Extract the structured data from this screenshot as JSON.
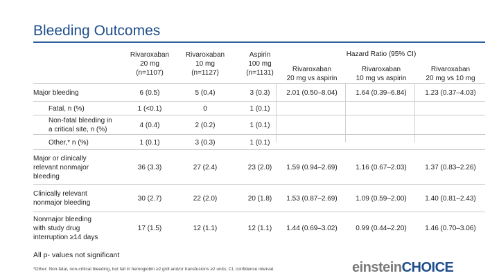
{
  "title": "Bleeding Outcomes",
  "columns": {
    "riva20": "Rivaroxaban\n20 mg\n(n=1107)",
    "riva10": "Rivaroxaban\n10 mg\n(n=1127)",
    "aspirin": "Aspirin\n100 mg\n(n=1131)",
    "hr_group": "Hazard Ratio (95% CI)",
    "hr1": "Rivaroxaban\n20 mg vs aspirin",
    "hr2": "Rivaroxaban\n10 mg vs aspirin",
    "hr3": "Rivaroxaban\n20 mg vs 10 mg"
  },
  "rows": [
    {
      "label": "Major bleeding",
      "v": [
        "6 (0.5)",
        "5 (0.4)",
        "3 (0.3)",
        "2.01 (0.50–8.04)",
        "1.64 (0.39–6.84)",
        "1.23 (0.37–4.03)"
      ]
    },
    {
      "label": "Fatal, n (%)",
      "v": [
        "1 (<0.1)",
        "0",
        "1 (0.1)",
        "",
        "",
        ""
      ]
    },
    {
      "label": "Non-fatal bleeding in\na critical site, n (%)",
      "v": [
        "4 (0.4)",
        "2 (0.2)",
        "1 (0.1)",
        "",
        "",
        ""
      ]
    },
    {
      "label": "Other,* n (%)",
      "v": [
        "1 (0.1)",
        "3 (0.3)",
        "1 (0.1)",
        "",
        "",
        ""
      ]
    },
    {
      "label": "Major or clinically\nrelevant nonmajor\nbleeding",
      "v": [
        "36 (3.3)",
        "27 (2.4)",
        "23 (2.0)",
        "1.59 (0.94–2.69)",
        "1.16 (0.67–2.03)",
        "1.37 (0.83–2.26)"
      ]
    },
    {
      "label": "Clinically relevant\nnonmajor bleeding",
      "v": [
        "30 (2.7)",
        "22 (2.0)",
        "20 (1.8)",
        "1.53 (0.87–2.69)",
        "1.09 (0.59–2.00)",
        "1.40 (0.81–2.43)"
      ]
    },
    {
      "label": "Nonmajor bleeding\nwith study drug\ninterruption ≥14 days",
      "v": [
        "17 (1.5)",
        "12 (1.1)",
        "12 (1.1)",
        "1.44 (0.69–3.02)",
        "0.99 (0.44–2.20)",
        "1.46 (0.70–3.06)"
      ]
    }
  ],
  "note": "All p- values not significant",
  "footnote": "*Other: Non-fatal, non-critical bleeding, but fall in hemoglobin ≥2 g/dl and/or transfusions ≥2 units; CI, confidence interval.",
  "logo": {
    "part1": "einstein",
    "part2": "CHOICE"
  }
}
